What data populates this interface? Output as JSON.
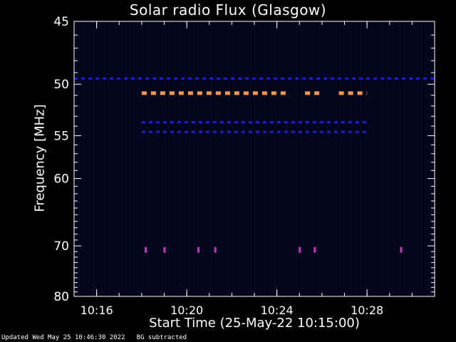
{
  "title": "Solar radio Flux (Glasgow)",
  "footer": "Updated Wed May 25 10:46:30 2022   BG subtracted",
  "colors": {
    "background": "#000000",
    "axes": "#ffffff",
    "field": "#05051a",
    "blue": "#1a1aff",
    "orange": "#ff9933",
    "magenta": "#cc33cc"
  },
  "chart_data": {
    "type": "heatmap",
    "title": "Solar radio Flux (Glasgow)",
    "xlabel": "Start Time (25-May-22 10:15:00)",
    "ylabel": "Frequency [MHz]",
    "xlim": [
      "10:15",
      "10:31"
    ],
    "ylim": [
      45,
      80
    ],
    "y_scale": "reciprocal",
    "x_ticks": [
      "10:16",
      "10:20",
      "10:24",
      "10:28"
    ],
    "y_ticks": [
      45,
      50,
      55,
      60,
      70,
      80
    ],
    "grid": false,
    "features": [
      {
        "name": "blue-band",
        "freq": 49.5,
        "start": "10:15",
        "end": "10:31",
        "color": "blue"
      },
      {
        "name": "orange-band-a",
        "freq": 50.8,
        "start": "10:18",
        "end": "10:24:30",
        "color": "orange"
      },
      {
        "name": "orange-band-b",
        "freq": 50.8,
        "start": "10:25:15",
        "end": "10:26",
        "color": "orange"
      },
      {
        "name": "orange-band-c",
        "freq": 50.8,
        "start": "10:26:45",
        "end": "10:28",
        "color": "orange"
      },
      {
        "name": "blue-band-53",
        "freq": 53.6,
        "start": "10:18",
        "end": "10:28",
        "color": "blue"
      },
      {
        "name": "blue-band-54",
        "freq": 54.6,
        "start": "10:18",
        "end": "10:28",
        "color": "blue"
      },
      {
        "name": "spike-1",
        "freq": 70.7,
        "time": "10:18:10",
        "color": "magenta"
      },
      {
        "name": "spike-2",
        "freq": 70.7,
        "time": "10:19",
        "color": "magenta"
      },
      {
        "name": "spike-3",
        "freq": 70.7,
        "time": "10:20:30",
        "color": "magenta"
      },
      {
        "name": "spike-4",
        "freq": 70.7,
        "time": "10:21:15",
        "color": "magenta"
      },
      {
        "name": "spike-5",
        "freq": 70.7,
        "time": "10:25",
        "color": "magenta"
      },
      {
        "name": "spike-6",
        "freq": 70.7,
        "time": "10:25:40",
        "color": "magenta"
      },
      {
        "name": "spike-7",
        "freq": 70.7,
        "time": "10:29:30",
        "color": "magenta"
      }
    ]
  }
}
